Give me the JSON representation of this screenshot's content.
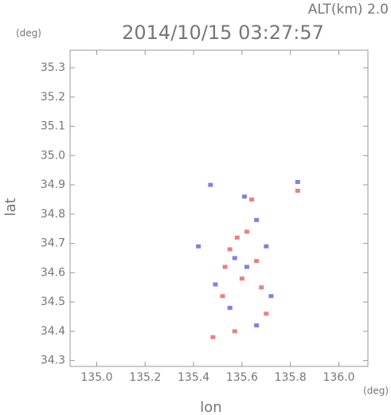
{
  "chart_data": {
    "type": "scatter",
    "title": "2014/10/15 03:27:57",
    "subtitle": "ALT(km)  2.0",
    "ylabel": "lat",
    "ylabel_unit": "(deg)",
    "xlabel": "lon",
    "xlabel_unit": "(deg)",
    "xlim": [
      134.89,
      136.12
    ],
    "ylim": [
      34.28,
      35.36
    ],
    "xticks": [
      {
        "value": 135,
        "label": "135.0"
      },
      135.2,
      135.4,
      135.6,
      135.8,
      {
        "value": 136,
        "label": "136.0"
      }
    ],
    "yticks": [
      34.3,
      34.4,
      34.5,
      34.6,
      34.7,
      34.8,
      34.9,
      {
        "value": 35,
        "label": "35.0"
      },
      35.1,
      35.2,
      35.3
    ],
    "series": [
      {
        "color": "#e86a6a",
        "x": [
          135.62,
          135.58,
          135.55,
          135.66,
          135.6,
          135.52,
          135.7,
          135.57,
          135.48,
          135.64,
          135.83,
          135.53,
          135.68
        ],
        "values": [
          34.74,
          34.72,
          34.68,
          34.64,
          34.58,
          34.52,
          34.46,
          34.4,
          34.38,
          34.85,
          34.88,
          34.62,
          34.55
        ]
      },
      {
        "color": "#6a6ae0",
        "x": [
          135.61,
          135.47,
          135.66,
          135.7,
          135.62,
          135.72,
          135.55,
          135.66,
          135.42,
          135.83,
          135.57,
          135.49
        ],
        "values": [
          34.86,
          34.9,
          34.78,
          34.69,
          34.62,
          34.52,
          34.48,
          34.42,
          34.69,
          34.91,
          34.65,
          34.56
        ]
      }
    ]
  }
}
